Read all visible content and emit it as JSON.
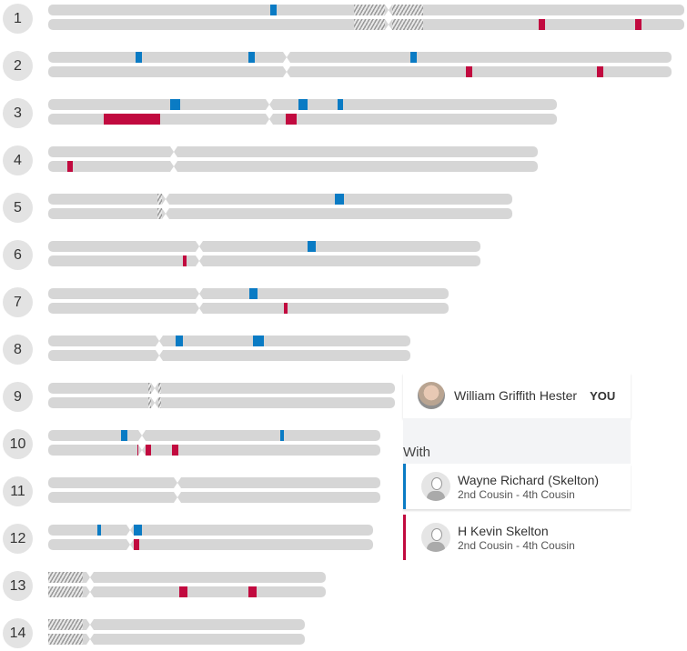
{
  "colors": {
    "match1": "#0a7bc4",
    "match2": "#c10a3f",
    "bar": "#d6d6d6"
  },
  "chromosomes": [
    {
      "label": "1",
      "length": 1.0,
      "centromere": 0.535,
      "hatch": [
        [
          0.48,
          0.59
        ]
      ],
      "segs": [
        {
          "s": 0.349,
          "e": 0.359,
          "t": 0
        },
        {
          "s": 0.771,
          "e": 0.781,
          "t": 1
        },
        {
          "s": 0.923,
          "e": 0.933,
          "t": 1
        }
      ]
    },
    {
      "label": "2",
      "length": 0.98,
      "centromere": 0.375,
      "hatch": [],
      "segs": [
        {
          "s": 0.137,
          "e": 0.147,
          "t": 0
        },
        {
          "s": 0.315,
          "e": 0.325,
          "t": 0
        },
        {
          "s": 0.569,
          "e": 0.579,
          "t": 0
        },
        {
          "s": 0.657,
          "e": 0.667,
          "t": 1
        },
        {
          "s": 0.863,
          "e": 0.873,
          "t": 1
        }
      ]
    },
    {
      "label": "3",
      "length": 0.8,
      "centromere": 0.348,
      "hatch": [],
      "segs": [
        {
          "s": 0.192,
          "e": 0.207,
          "t": 0
        },
        {
          "s": 0.393,
          "e": 0.408,
          "t": 0
        },
        {
          "s": 0.455,
          "e": 0.463,
          "t": 0
        },
        {
          "s": 0.087,
          "e": 0.176,
          "t": 1
        },
        {
          "s": 0.374,
          "e": 0.391,
          "t": 1
        }
      ]
    },
    {
      "label": "4",
      "length": 0.77,
      "centromere": 0.198,
      "hatch": [],
      "segs": [
        {
          "s": 0.03,
          "e": 0.039,
          "t": 1
        }
      ]
    },
    {
      "label": "5",
      "length": 0.73,
      "centromere": 0.185,
      "hatch": [
        [
          0.172,
          0.18
        ]
      ],
      "segs": [
        {
          "s": 0.451,
          "e": 0.465,
          "t": 0
        }
      ]
    },
    {
      "label": "6",
      "length": 0.68,
      "centromere": 0.237,
      "hatch": [],
      "segs": [
        {
          "s": 0.408,
          "e": 0.421,
          "t": 0
        },
        {
          "s": 0.212,
          "e": 0.218,
          "t": 1
        }
      ]
    },
    {
      "label": "7",
      "length": 0.63,
      "centromere": 0.237,
      "hatch": [],
      "segs": [
        {
          "s": 0.316,
          "e": 0.329,
          "t": 0
        },
        {
          "s": 0.37,
          "e": 0.376,
          "t": 1
        }
      ]
    },
    {
      "label": "8",
      "length": 0.57,
      "centromere": 0.175,
      "hatch": [],
      "segs": [
        {
          "s": 0.2,
          "e": 0.212,
          "t": 0
        },
        {
          "s": 0.322,
          "e": 0.339,
          "t": 0
        }
      ]
    },
    {
      "label": "9",
      "length": 0.545,
      "centromere": 0.167,
      "hatch": [
        [
          0.157,
          0.177
        ]
      ],
      "segs": []
    },
    {
      "label": "10",
      "length": 0.522,
      "centromere": 0.148,
      "hatch": [],
      "segs": [
        {
          "s": 0.114,
          "e": 0.124,
          "t": 0
        },
        {
          "s": 0.365,
          "e": 0.37,
          "t": 0
        },
        {
          "s": 0.14,
          "e": 0.161,
          "t": 1
        },
        {
          "s": 0.194,
          "e": 0.204,
          "t": 1
        }
      ]
    },
    {
      "label": "11",
      "length": 0.522,
      "centromere": 0.203,
      "hatch": [],
      "segs": []
    },
    {
      "label": "12",
      "length": 0.511,
      "centromere": 0.129,
      "hatch": [],
      "segs": [
        {
          "s": 0.077,
          "e": 0.083,
          "t": 0
        },
        {
          "s": 0.128,
          "e": 0.148,
          "t": 0
        },
        {
          "s": 0.124,
          "e": 0.143,
          "t": 1
        }
      ]
    },
    {
      "label": "13",
      "length": 0.436,
      "centromere": 0.066,
      "hatch": [
        [
          0.0,
          0.054
        ]
      ],
      "segs": [
        {
          "s": 0.206,
          "e": 0.219,
          "t": 1
        },
        {
          "s": 0.315,
          "e": 0.328,
          "t": 1
        }
      ]
    },
    {
      "label": "14",
      "length": 0.404,
      "centromere": 0.066,
      "hatch": [
        [
          0.0,
          0.054
        ]
      ],
      "segs": []
    }
  ],
  "panel": {
    "you_name": "William Griffith Hester",
    "you_badge": "YOU",
    "with_label": "With",
    "matches": [
      {
        "name": "Wayne Richard (Skelton)",
        "relationship": "2nd Cousin - 4th Cousin",
        "color": "#0a7bc4"
      },
      {
        "name": "H Kevin Skelton",
        "relationship": "2nd Cousin - 4th Cousin",
        "color": "#c10a3f"
      }
    ]
  }
}
